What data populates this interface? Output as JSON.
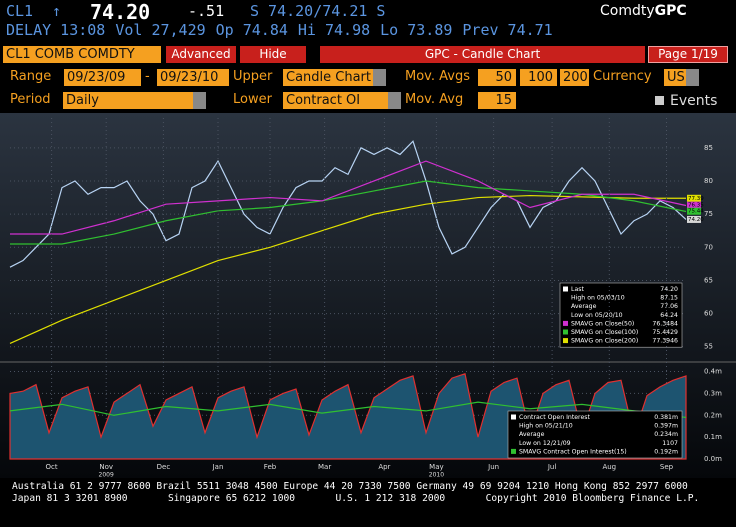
{
  "header": {
    "ticker": "CL1",
    "arrow": "↑",
    "price": "74.20",
    "change": "-.51",
    "quote": "S 74.20/74.21 S",
    "brand_prefix": "Comdty",
    "brand": "GPC"
  },
  "stats": [
    "DELAY 13:08",
    "Vol 27,429",
    "Op 74.84",
    "Hi 74.98",
    "Lo 73.89",
    "Prev 74.71"
  ],
  "toolbar": {
    "security": "CL1 COMB COMDTY",
    "advanced": "Advanced",
    "hide": "Hide",
    "title": "GPC - Candle Chart",
    "page": "Page 1/19"
  },
  "controls": {
    "range_label": "Range",
    "range_start": "09/23/09",
    "dash": "-",
    "range_end": "09/23/10",
    "upper_label": "Upper",
    "upper": "Candle Chart",
    "mavgs_label": "Mov. Avgs",
    "mavgs": [
      "50",
      "100",
      "200"
    ],
    "currency_label": "Currency",
    "currency": "USD",
    "period_label": "Period",
    "period": "Daily",
    "lower_label": "Lower",
    "lower": "Contract OI",
    "mavg_label": "Mov. Avg",
    "mavg": "15",
    "events": "Events"
  },
  "chart_data": [
    {
      "type": "line",
      "xlim": [
        0,
        52
      ],
      "ylim": [
        53,
        89.5
      ],
      "yticks": [
        55,
        60,
        65,
        70,
        75,
        80,
        85
      ],
      "grid": true,
      "series": [
        {
          "color": "#b8d4f4",
          "values": [
            67,
            68,
            70,
            72,
            79,
            80,
            78,
            79,
            79,
            80,
            77,
            75,
            71,
            72,
            79,
            80,
            83,
            79,
            75,
            73,
            72,
            76,
            79,
            80,
            80,
            82,
            81,
            85,
            84,
            85,
            84,
            86,
            80,
            73,
            69,
            70,
            73,
            76,
            78,
            77,
            73,
            76,
            77,
            80,
            82,
            80,
            76,
            72,
            74,
            75,
            77,
            76,
            74.2
          ]
        },
        {
          "color": "#e0e000",
          "x": [
            0,
            4,
            8,
            12,
            16,
            20,
            24,
            28,
            32,
            36,
            40,
            44,
            48,
            52
          ],
          "values": [
            55.5,
            59,
            62,
            65,
            68,
            70,
            72.5,
            75,
            76.5,
            77.5,
            77.8,
            77.6,
            77.4,
            77.4
          ]
        },
        {
          "color": "#30c030",
          "x": [
            0,
            4,
            8,
            12,
            16,
            20,
            24,
            28,
            32,
            36,
            40,
            44,
            48,
            52
          ],
          "values": [
            70.5,
            70.5,
            72,
            74,
            75.5,
            76,
            77,
            78.5,
            80,
            79,
            78.5,
            78,
            77,
            75.4
          ]
        },
        {
          "color": "#d030d0",
          "x": [
            0,
            4,
            8,
            12,
            16,
            20,
            24,
            28,
            32,
            36,
            40,
            44,
            48,
            52
          ],
          "values": [
            72,
            72,
            74,
            76.5,
            77,
            77.5,
            77,
            80,
            83,
            80,
            76,
            78,
            78,
            76.3
          ]
        }
      ],
      "tags": [
        {
          "value": 77.39,
          "label": "77.39",
          "color": "#e0e000"
        },
        {
          "value": 76.35,
          "label": "76.35",
          "color": "#d030d0"
        },
        {
          "value": 75.44,
          "label": "75.44",
          "color": "#30c030"
        },
        {
          "value": 74.2,
          "label": "74.20",
          "color": "#d8d8d8"
        }
      ],
      "legend": [
        {
          "label": "Last",
          "value": "74.20",
          "color": "#ffffff"
        },
        {
          "label": "High on 05/03/10",
          "value": "87.15"
        },
        {
          "label": "Average",
          "value": "77.06"
        },
        {
          "label": "Low on 05/20/10",
          "value": "64.24"
        },
        {
          "label": "SMAVG on Close(50)",
          "value": "76.3484",
          "color": "#d030d0"
        },
        {
          "label": "SMAVG on Close(100)",
          "value": "75.4429",
          "color": "#30c030"
        },
        {
          "label": "SMAVG on Close(200)",
          "value": "77.3946",
          "color": "#e0e000"
        }
      ]
    },
    {
      "type": "area",
      "xlim": [
        0,
        52
      ],
      "ylim": [
        0,
        0.43
      ],
      "yticks": [
        {
          "value": 0,
          "label": "0.0m"
        },
        {
          "value": 0.1,
          "label": "0.1m"
        },
        {
          "value": 0.2,
          "label": "0.2m"
        },
        {
          "value": 0.3,
          "label": "0.3m"
        },
        {
          "value": 0.4,
          "label": "0.4m"
        }
      ],
      "grid": true,
      "xticks": [
        {
          "value": 3.2,
          "label": "Oct"
        },
        {
          "value": 7.4,
          "label": "Nov"
        },
        {
          "value": 11.8,
          "label": "Dec"
        },
        {
          "value": 16,
          "label": "Jan"
        },
        {
          "value": 20,
          "label": "Feb"
        },
        {
          "value": 24.2,
          "label": "Mar"
        },
        {
          "value": 28.8,
          "label": "Apr"
        },
        {
          "value": 32.8,
          "label": "May"
        },
        {
          "value": 37.2,
          "label": "Jun"
        },
        {
          "value": 41.7,
          "label": "Jul"
        },
        {
          "value": 46.1,
          "label": "Aug"
        },
        {
          "value": 50.5,
          "label": "Sep"
        }
      ],
      "year_labels": [
        {
          "value": 7.4,
          "label": "2009"
        },
        {
          "value": 32.8,
          "label": "2010"
        }
      ],
      "series": [
        {
          "color": "#e03030",
          "fill": "#1d5470",
          "values": [
            0.3,
            0.31,
            0.34,
            0.12,
            0.28,
            0.31,
            0.33,
            0.1,
            0.26,
            0.3,
            0.34,
            0.15,
            0.27,
            0.3,
            0.33,
            0.12,
            0.28,
            0.31,
            0.33,
            0.1,
            0.27,
            0.3,
            0.32,
            0.11,
            0.27,
            0.31,
            0.34,
            0.12,
            0.28,
            0.32,
            0.36,
            0.38,
            0.12,
            0.3,
            0.37,
            0.39,
            0.1,
            0.31,
            0.35,
            0.37,
            0.12,
            0.3,
            0.34,
            0.36,
            0.12,
            0.3,
            0.35,
            0.36,
            0.11,
            0.29,
            0.33,
            0.36,
            0.38
          ]
        },
        {
          "type": "line",
          "color": "#30c030",
          "x": [
            0,
            4,
            8,
            12,
            16,
            20,
            24,
            28,
            32,
            36,
            40,
            44,
            48,
            52
          ],
          "values": [
            0.22,
            0.25,
            0.2,
            0.24,
            0.22,
            0.25,
            0.21,
            0.24,
            0.22,
            0.26,
            0.23,
            0.25,
            0.22,
            0.19
          ]
        }
      ],
      "legend": [
        {
          "label": "Contract Open Interest",
          "value": "0.381m",
          "color": "#ffffff"
        },
        {
          "label": "High on 05/21/10",
          "value": "0.397m"
        },
        {
          "label": "Average",
          "value": "0.234m"
        },
        {
          "label": "Low on 12/21/09",
          "value": "1107"
        },
        {
          "label": "SMAVG Contract Open Interest(15)",
          "value": "0.192m",
          "color": "#30c030"
        }
      ]
    }
  ],
  "footer": [
    "Australia 61 2 9777 8600 Brazil 5511 3048 4500 Europe 44 20 7330 7500 Germany 49 69 9204 1210 Hong Kong 852 2977 6000",
    "Japan 81 3 3201 8900       Singapore 65 6212 1000       U.S. 1 212 318 2000       Copyright 2010 Bloomberg Finance L.P."
  ]
}
